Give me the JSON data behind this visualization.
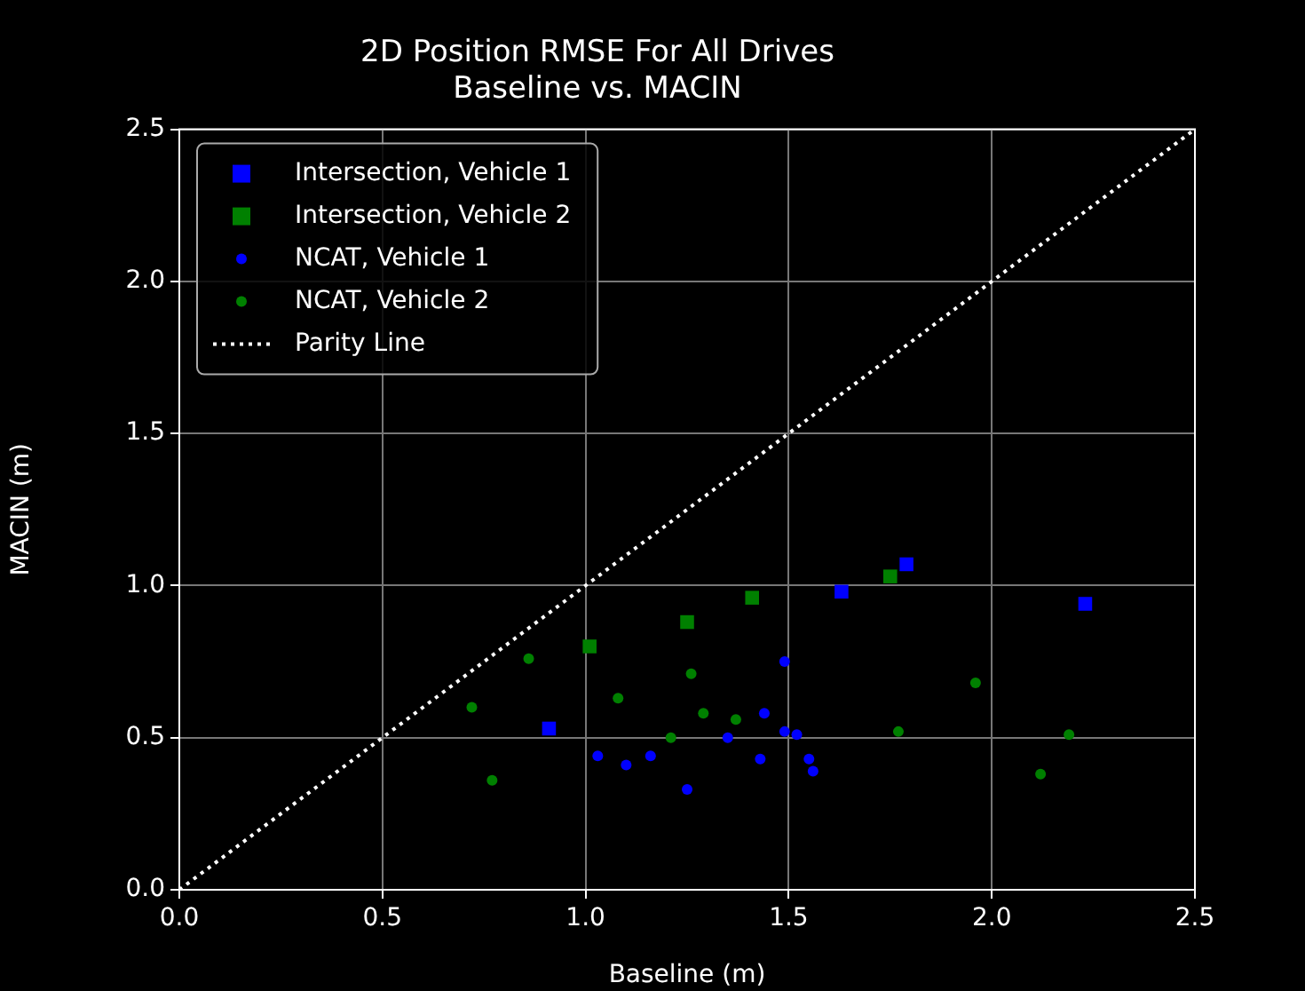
{
  "chart_data": {
    "type": "scatter",
    "title": "2D Position RMSE For All Drives",
    "subtitle": "Baseline vs. MACIN",
    "xlabel": "Baseline (m)",
    "ylabel": "MACIN (m)",
    "xlim": [
      0,
      2.5
    ],
    "ylim": [
      0,
      2.5
    ],
    "xticks": [
      {
        "value": 0,
        "label": "0.0"
      },
      {
        "value": 0.5,
        "label": "0.5"
      },
      {
        "value": 1,
        "label": "1.0"
      },
      {
        "value": 1.5,
        "label": "1.5"
      },
      {
        "value": 2,
        "label": "2.0"
      },
      {
        "value": 2.5,
        "label": "2.5"
      }
    ],
    "yticks": [
      {
        "value": 0,
        "label": "0.0"
      },
      {
        "value": 0.5,
        "label": "0.5"
      },
      {
        "value": 1,
        "label": "1.0"
      },
      {
        "value": 1.5,
        "label": "1.5"
      },
      {
        "value": 2,
        "label": "2.0"
      },
      {
        "value": 2.5,
        "label": "2.5"
      }
    ],
    "grid": true,
    "legend": "top left",
    "series": [
      {
        "name": "Intersection, Vehicle 1",
        "color": "#0000ff",
        "marker": "square",
        "x": [
          0.91,
          1.63,
          1.79,
          2.23
        ],
        "values": [
          0.53,
          0.98,
          1.07,
          0.94
        ]
      },
      {
        "name": "Intersection, Vehicle 2",
        "color": "#008000",
        "marker": "square",
        "x": [
          1.01,
          1.25,
          1.41,
          1.75
        ],
        "values": [
          0.8,
          0.88,
          0.96,
          1.03
        ]
      },
      {
        "name": "NCAT, Vehicle 1",
        "color": "#0000ff",
        "marker": "circle",
        "x": [
          1.03,
          1.1,
          1.16,
          1.25,
          1.35,
          1.43,
          1.44,
          1.49,
          1.49,
          1.52,
          1.55,
          1.56
        ],
        "values": [
          0.44,
          0.41,
          0.44,
          0.33,
          0.5,
          0.43,
          0.58,
          0.75,
          0.52,
          0.51,
          0.43,
          0.39
        ]
      },
      {
        "name": "NCAT, Vehicle 2",
        "color": "#008000",
        "marker": "circle",
        "x": [
          0.72,
          0.77,
          0.86,
          1.08,
          1.21,
          1.26,
          1.29,
          1.37,
          1.77,
          1.96,
          2.12,
          2.19
        ],
        "values": [
          0.6,
          0.36,
          0.76,
          0.63,
          0.5,
          0.71,
          0.58,
          0.56,
          0.52,
          0.68,
          0.38,
          0.51
        ]
      },
      {
        "name": "Parity Line",
        "type": "line",
        "color": "#ffffff",
        "marker": "none",
        "line_style": "dotted",
        "x": [
          0,
          2.5
        ],
        "values": [
          0,
          2.5
        ]
      }
    ]
  }
}
